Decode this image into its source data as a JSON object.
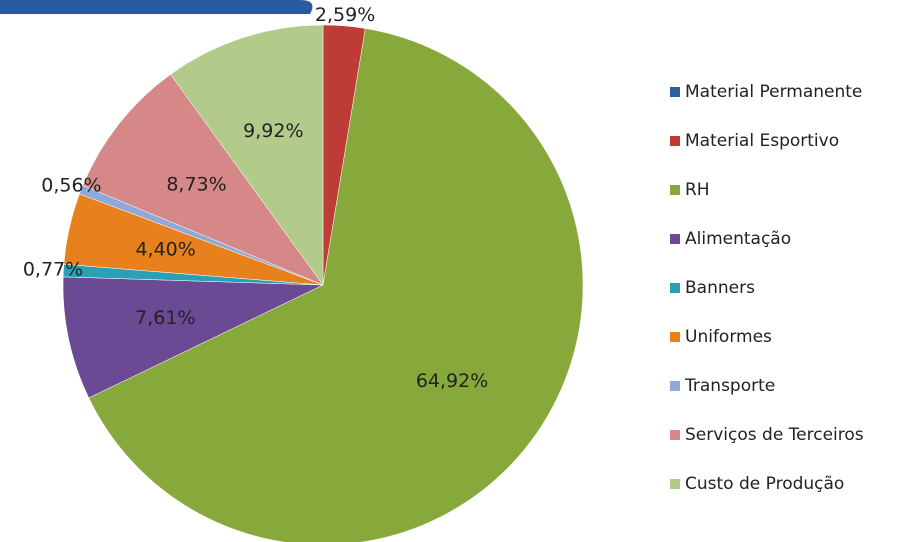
{
  "chart_data": {
    "type": "pie",
    "categories": [
      "Material Permanente",
      "Material Esportivo",
      "RH",
      "Alimentação",
      "Banners",
      "Uniformes",
      "Transporte",
      "Serviços de Terceiros",
      "Custo de Produção"
    ],
    "values": [
      0,
      2.59,
      64.92,
      7.61,
      0.77,
      4.4,
      0.56,
      8.73,
      9.92
    ],
    "value_labels": [
      null,
      "2,59%",
      "64,92%",
      "7,61%",
      "0,77%",
      "4,40%",
      "0,56%",
      "8,73%",
      "9,92%"
    ],
    "colors": [
      "#2f5f9f",
      "#bf3b36",
      "#87a83b",
      "#6a4a94",
      "#2a9fb6",
      "#e8801e",
      "#8ea8d8",
      "#d68888",
      "#b2cb8b"
    ],
    "legend": "right"
  }
}
